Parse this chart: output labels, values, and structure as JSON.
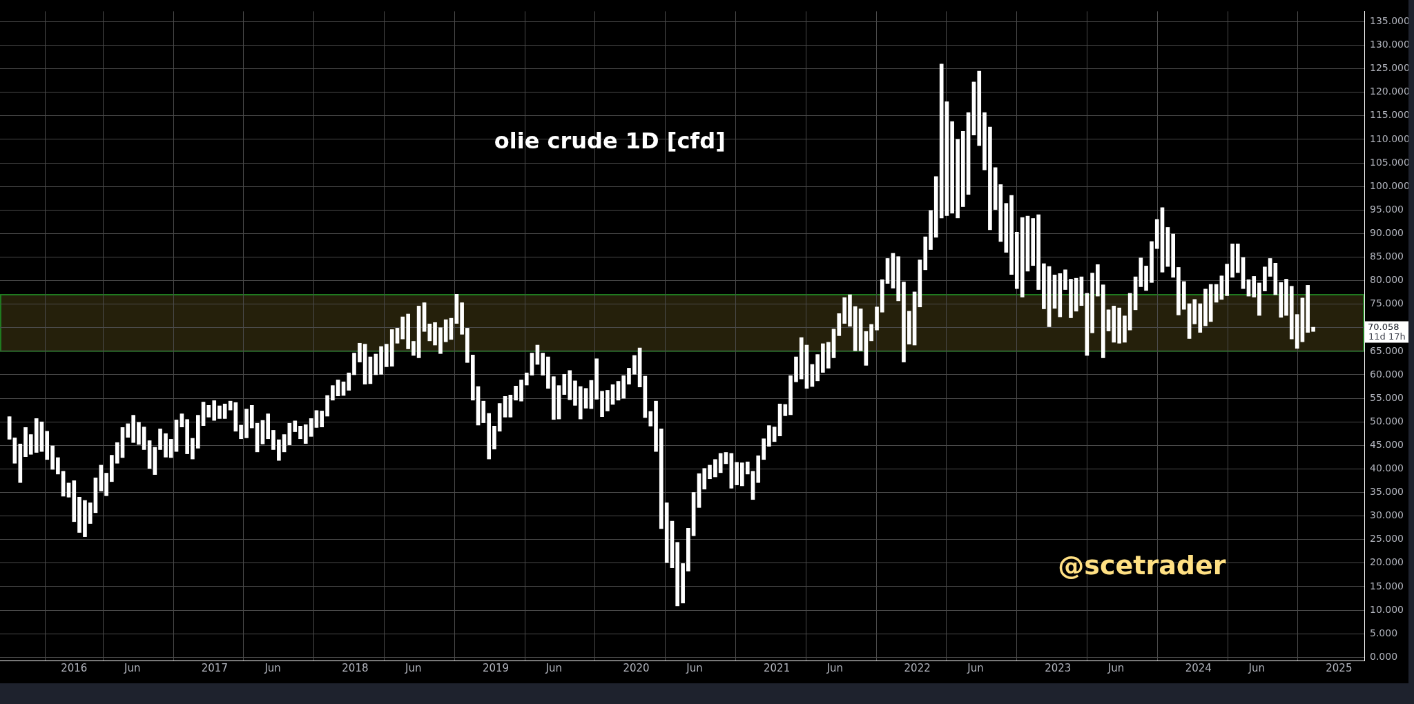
{
  "chart_data": {
    "type": "candlestick",
    "title": "olie crude 1D [cfd]",
    "color": "#ffffff",
    "grid": true,
    "x": [
      2015.54,
      2015.578,
      2015.617,
      2015.655,
      2015.693,
      2015.732,
      2015.77,
      2015.808,
      2015.847,
      2015.885,
      2015.923,
      2015.962,
      2016.0,
      2016.038,
      2016.077,
      2016.115,
      2016.153,
      2016.192,
      2016.23,
      2016.268,
      2016.307,
      2016.345,
      2016.383,
      2016.422,
      2016.46,
      2016.498,
      2016.537,
      2016.575,
      2016.613,
      2016.652,
      2016.69,
      2016.728,
      2016.767,
      2016.805,
      2016.843,
      2016.882,
      2016.92,
      2016.958,
      2016.997,
      2017.035,
      2017.073,
      2017.112,
      2017.15,
      2017.188,
      2017.227,
      2017.265,
      2017.303,
      2017.342,
      2017.38,
      2017.418,
      2017.457,
      2017.495,
      2017.533,
      2017.572,
      2017.61,
      2017.648,
      2017.687,
      2017.725,
      2017.763,
      2017.802,
      2017.84,
      2017.878,
      2017.917,
      2017.955,
      2017.993,
      2018.032,
      2018.07,
      2018.108,
      2018.147,
      2018.185,
      2018.223,
      2018.262,
      2018.3,
      2018.338,
      2018.377,
      2018.415,
      2018.453,
      2018.492,
      2018.53,
      2018.568,
      2018.607,
      2018.645,
      2018.683,
      2018.722,
      2018.76,
      2018.798,
      2018.837,
      2018.875,
      2018.913,
      2018.952,
      2018.99,
      2019.028,
      2019.067,
      2019.105,
      2019.143,
      2019.182,
      2019.22,
      2019.258,
      2019.297,
      2019.335,
      2019.373,
      2019.412,
      2019.45,
      2019.488,
      2019.527,
      2019.565,
      2019.603,
      2019.642,
      2019.68,
      2019.718,
      2019.757,
      2019.795,
      2019.833,
      2019.872,
      2019.91,
      2019.948,
      2019.987,
      2020.025,
      2020.063,
      2020.102,
      2020.14,
      2020.178,
      2020.217,
      2020.255,
      2020.293,
      2020.332,
      2020.37,
      2020.408,
      2020.447,
      2020.485,
      2020.523,
      2020.562,
      2020.6,
      2020.638,
      2020.677,
      2020.715,
      2020.753,
      2020.792,
      2020.83,
      2020.868,
      2020.907,
      2020.945,
      2020.983,
      2021.022,
      2021.06,
      2021.098,
      2021.137,
      2021.175,
      2021.213,
      2021.252,
      2021.29,
      2021.328,
      2021.367,
      2021.405,
      2021.443,
      2021.482,
      2021.52,
      2021.558,
      2021.597,
      2021.635,
      2021.673,
      2021.712,
      2021.75,
      2021.788,
      2021.827,
      2021.865,
      2021.903,
      2021.942,
      2021.98,
      2022.018,
      2022.057,
      2022.095,
      2022.133,
      2022.172,
      2022.21,
      2022.248,
      2022.287,
      2022.325,
      2022.363,
      2022.402,
      2022.44,
      2022.478,
      2022.517,
      2022.555,
      2022.593,
      2022.632,
      2022.67,
      2022.708,
      2022.747,
      2022.785,
      2022.823,
      2022.862,
      2022.9,
      2022.938,
      2022.977,
      2023.015,
      2023.053,
      2023.092,
      2023.13,
      2023.168,
      2023.207,
      2023.245,
      2023.283,
      2023.322,
      2023.36,
      2023.398,
      2023.437,
      2023.475,
      2023.513,
      2023.552,
      2023.59,
      2023.628,
      2023.667,
      2023.705,
      2023.743,
      2023.782,
      2023.82,
      2023.858,
      2023.897,
      2023.935,
      2023.973,
      2024.012,
      2024.05,
      2024.088,
      2024.127,
      2024.165,
      2024.203,
      2024.242,
      2024.28,
      2024.318,
      2024.357,
      2024.395,
      2024.433,
      2024.472,
      2024.51,
      2024.548,
      2024.587,
      2024.625,
      2024.663,
      2024.702,
      2024.74,
      2024.778,
      2024.817
    ],
    "ohlc": [
      [
        46.3,
        51.1,
        46.3,
        51.1
      ],
      [
        41.2,
        46.6,
        41.2,
        46.6
      ],
      [
        37.1,
        45.3,
        37.1,
        45.3
      ],
      [
        42.6,
        48.8,
        42.6,
        48.8
      ],
      [
        43.1,
        47.3,
        43.1,
        47.3
      ],
      [
        43.5,
        50.7,
        43.5,
        50.7
      ],
      [
        43.7,
        50,
        43.7,
        50
      ],
      [
        42,
        48,
        42,
        48
      ],
      [
        39.9,
        44.9,
        39.9,
        44.9
      ],
      [
        38.9,
        42.4,
        38.9,
        42.4
      ],
      [
        34.2,
        39.5,
        34.2,
        39.5
      ],
      [
        34,
        37,
        34,
        37
      ],
      [
        28.8,
        37.5,
        28.8,
        37.5
      ],
      [
        26.5,
        34,
        26.5,
        34
      ],
      [
        25.6,
        33.3,
        25.6,
        33.3
      ],
      [
        28.4,
        32.8,
        28.4,
        32.8
      ],
      [
        30.7,
        38.1,
        30.7,
        38.1
      ],
      [
        35.3,
        40.8,
        35.3,
        40.8
      ],
      [
        34.3,
        39.1,
        34.3,
        39.1
      ],
      [
        37.3,
        42.9,
        37.3,
        42.9
      ],
      [
        41.2,
        45.6,
        41.2,
        45.6
      ],
      [
        42.4,
        48.8,
        42.4,
        48.8
      ],
      [
        46.7,
        49.6,
        46.7,
        49.6
      ],
      [
        45.6,
        51.4,
        45.6,
        51.4
      ],
      [
        45.2,
        49.9,
        45.2,
        49.9
      ],
      [
        44.1,
        48.9,
        44.1,
        48.9
      ],
      [
        40.1,
        46,
        40.1,
        46
      ],
      [
        38.8,
        44.6,
        38.8,
        44.6
      ],
      [
        44.1,
        48.5,
        44.1,
        48.5
      ],
      [
        42.5,
        47.5,
        42.5,
        47.5
      ],
      [
        42.4,
        46.3,
        42.4,
        46.3
      ],
      [
        43.7,
        50.4,
        43.7,
        50.4
      ],
      [
        48.9,
        51.7,
        48.9,
        51.7
      ],
      [
        43.2,
        50.5,
        43.2,
        50.5
      ],
      [
        42.1,
        46.5,
        42.1,
        46.5
      ],
      [
        44.4,
        51.4,
        44.4,
        51.4
      ],
      [
        49.2,
        54.2,
        49.2,
        54.2
      ],
      [
        51,
        53.5,
        51,
        53.5
      ],
      [
        50.3,
        54.5,
        50.3,
        54.5
      ],
      [
        50.7,
        53.4,
        50.7,
        53.4
      ],
      [
        50.7,
        53.8,
        50.7,
        53.8
      ],
      [
        52.5,
        54.4,
        52.5,
        54.4
      ],
      [
        48,
        54.1,
        48,
        54.1
      ],
      [
        46.4,
        49.3,
        46.4,
        49.3
      ],
      [
        46.6,
        52.7,
        46.6,
        52.7
      ],
      [
        48.7,
        53.5,
        48.7,
        53.5
      ],
      [
        43.6,
        49.7,
        43.6,
        49.7
      ],
      [
        45.3,
        50.3,
        45.3,
        50.3
      ],
      [
        46.4,
        51.7,
        46.4,
        51.7
      ],
      [
        44.1,
        48.2,
        44.1,
        48.2
      ],
      [
        41.8,
        46.2,
        41.8,
        46.2
      ],
      [
        43.6,
        47.3,
        43.6,
        47.3
      ],
      [
        45.1,
        49.7,
        45.1,
        49.7
      ],
      [
        47.9,
        50.2,
        47.9,
        50.2
      ],
      [
        46.4,
        49.1,
        46.4,
        49.1
      ],
      [
        45.4,
        49.4,
        45.4,
        49.4
      ],
      [
        46.9,
        50.7,
        46.9,
        50.7
      ],
      [
        48.8,
        52.4,
        48.8,
        52.4
      ],
      [
        48.9,
        52.3,
        48.9,
        52.3
      ],
      [
        51.2,
        55.6,
        51.2,
        55.6
      ],
      [
        54.6,
        57.7,
        54.6,
        57.7
      ],
      [
        55.5,
        58.9,
        55.5,
        58.9
      ],
      [
        55.6,
        58.5,
        55.6,
        58.5
      ],
      [
        56.7,
        60.4,
        56.7,
        60.4
      ],
      [
        60,
        64.6,
        60,
        64.6
      ],
      [
        62.7,
        66.7,
        62.7,
        66.7
      ],
      [
        58,
        66.5,
        58,
        66.5
      ],
      [
        58.1,
        63.8,
        58.1,
        63.8
      ],
      [
        60,
        64.4,
        60,
        64.4
      ],
      [
        60.1,
        66,
        60.1,
        66
      ],
      [
        61.7,
        66.5,
        61.7,
        66.5
      ],
      [
        61.8,
        69.6,
        61.8,
        69.6
      ],
      [
        66.7,
        69.9,
        66.7,
        69.9
      ],
      [
        67.6,
        72.3,
        67.6,
        72.3
      ],
      [
        65.5,
        72.9,
        65.5,
        72.9
      ],
      [
        64.1,
        67.1,
        64.1,
        67.1
      ],
      [
        63.6,
        74.6,
        63.6,
        74.6
      ],
      [
        69.2,
        75.3,
        69.2,
        75.3
      ],
      [
        67.2,
        70.8,
        67.2,
        70.8
      ],
      [
        66.3,
        71.1,
        66.3,
        71.1
      ],
      [
        64.5,
        70,
        64.5,
        70
      ],
      [
        67,
        71.7,
        67,
        71.7
      ],
      [
        67.5,
        72,
        67.5,
        72
      ],
      [
        70.9,
        77.1,
        70.9,
        77.1
      ],
      [
        68.6,
        75.3,
        68.6,
        75.3
      ],
      [
        62.6,
        69.9,
        62.6,
        69.9
      ],
      [
        54.6,
        64.2,
        54.6,
        64.2
      ],
      [
        49.3,
        57.5,
        49.3,
        57.5
      ],
      [
        49.8,
        54.4,
        49.8,
        54.4
      ],
      [
        42.1,
        51.8,
        42.1,
        51.8
      ],
      [
        44.2,
        49.1,
        44.2,
        49.1
      ],
      [
        48,
        53.9,
        48,
        53.9
      ],
      [
        51,
        55.4,
        51,
        55.4
      ],
      [
        51,
        55.7,
        51,
        55.7
      ],
      [
        54.6,
        57.6,
        54.6,
        57.6
      ],
      [
        54.4,
        58.9,
        54.4,
        58.9
      ],
      [
        57.8,
        60.4,
        57.8,
        60.4
      ],
      [
        59.9,
        64.6,
        59.9,
        64.6
      ],
      [
        62.2,
        66.3,
        62.2,
        66.3
      ],
      [
        59.9,
        64.6,
        59.9,
        64.6
      ],
      [
        57.1,
        63.8,
        57.1,
        63.8
      ],
      [
        50.5,
        59.6,
        50.5,
        59.6
      ],
      [
        50.6,
        57.7,
        50.6,
        57.7
      ],
      [
        55.8,
        60.1,
        55.8,
        60.1
      ],
      [
        54.7,
        60.9,
        54.7,
        60.9
      ],
      [
        53.5,
        58.7,
        53.5,
        58.7
      ],
      [
        50.6,
        57.5,
        50.6,
        57.5
      ],
      [
        52.9,
        57.1,
        52.9,
        57.1
      ],
      [
        52.8,
        58.8,
        52.8,
        58.8
      ],
      [
        54.8,
        63.4,
        54.8,
        63.4
      ],
      [
        51.1,
        56.5,
        51.1,
        56.5
      ],
      [
        52.3,
        56.7,
        52.3,
        56.7
      ],
      [
        53.7,
        57.9,
        53.7,
        57.9
      ],
      [
        54.6,
        58.6,
        54.6,
        58.6
      ],
      [
        55,
        59.8,
        55,
        59.8
      ],
      [
        58,
        61.4,
        58,
        61.4
      ],
      [
        60.1,
        64.1,
        60.1,
        64.1
      ],
      [
        57.4,
        65.7,
        57.4,
        65.7
      ],
      [
        50.9,
        59.7,
        50.9,
        59.7
      ],
      [
        49.1,
        52.2,
        49.1,
        52.2
      ],
      [
        43.7,
        54.4,
        43.7,
        54.4
      ],
      [
        27.3,
        48.5,
        27.3,
        48.5
      ],
      [
        20.1,
        32.8,
        20.1,
        32.8
      ],
      [
        19,
        28.9,
        19,
        28.9
      ],
      [
        10.9,
        24.4,
        10.9,
        24.4
      ],
      [
        11.5,
        19.9,
        11.5,
        19.9
      ],
      [
        18.3,
        27.4,
        18.3,
        27.4
      ],
      [
        25.8,
        35,
        25.8,
        35
      ],
      [
        31.8,
        39,
        31.8,
        39
      ],
      [
        35.7,
        40.1,
        35.7,
        40.1
      ],
      [
        37.9,
        40.8,
        37.9,
        40.8
      ],
      [
        38.3,
        42,
        38.3,
        42
      ],
      [
        39.2,
        43.3,
        39.2,
        43.3
      ],
      [
        41.1,
        43.5,
        41.1,
        43.5
      ],
      [
        35.9,
        43.3,
        35.9,
        43.3
      ],
      [
        36.6,
        41.4,
        36.6,
        41.4
      ],
      [
        36.4,
        41.3,
        36.4,
        41.3
      ],
      [
        38.9,
        41.5,
        38.9,
        41.5
      ],
      [
        33.5,
        39.5,
        33.5,
        39.5
      ],
      [
        37.1,
        42.8,
        37.1,
        42.8
      ],
      [
        42,
        46.4,
        42,
        46.4
      ],
      [
        44.8,
        49.2,
        44.8,
        49.2
      ],
      [
        45.8,
        48.9,
        45.8,
        48.9
      ],
      [
        47,
        53.8,
        47,
        53.8
      ],
      [
        51.3,
        53.7,
        51.3,
        53.7
      ],
      [
        51.5,
        59.8,
        51.5,
        59.8
      ],
      [
        58.5,
        63.8,
        58.5,
        63.8
      ],
      [
        59.1,
        67.9,
        59.1,
        67.9
      ],
      [
        57.1,
        66.3,
        57.1,
        66.3
      ],
      [
        57.5,
        62.2,
        57.5,
        62.2
      ],
      [
        58.7,
        64.3,
        58.7,
        64.3
      ],
      [
        60.5,
        66.6,
        60.5,
        66.6
      ],
      [
        61.4,
        66.9,
        61.4,
        66.9
      ],
      [
        63.6,
        69.7,
        63.6,
        69.7
      ],
      [
        68.3,
        73,
        68.3,
        73
      ],
      [
        70.9,
        76.4,
        70.9,
        76.4
      ],
      [
        70.3,
        77,
        70.3,
        77
      ],
      [
        65.1,
        74.5,
        65.1,
        74.5
      ],
      [
        65.1,
        74,
        65.1,
        74
      ],
      [
        62,
        69.2,
        62,
        69.2
      ],
      [
        67.2,
        70.7,
        67.2,
        70.7
      ],
      [
        69.5,
        74.4,
        69.5,
        74.4
      ],
      [
        73.3,
        80.2,
        73.3,
        80.2
      ],
      [
        79.4,
        84.7,
        79.4,
        84.7
      ],
      [
        78.4,
        85.8,
        78.4,
        85.8
      ],
      [
        75.7,
        85.1,
        75.7,
        85.1
      ],
      [
        62.7,
        79.7,
        62.7,
        79.7
      ],
      [
        66.5,
        73.5,
        66.5,
        73.5
      ],
      [
        66.3,
        77.6,
        66.3,
        77.6
      ],
      [
        74.4,
        84.4,
        74.4,
        84.4
      ],
      [
        82.3,
        89.3,
        82.3,
        89.3
      ],
      [
        86.6,
        94.9,
        86.6,
        94.9
      ],
      [
        89.2,
        102.1,
        89.2,
        102.1
      ],
      [
        93.3,
        126,
        93.3,
        126
      ],
      [
        93.8,
        118,
        93.8,
        118
      ],
      [
        94.3,
        113.8,
        94.3,
        113.8
      ],
      [
        93.3,
        110,
        93.3,
        110
      ],
      [
        95.7,
        111.7,
        95.7,
        111.7
      ],
      [
        98.3,
        115.7,
        98.3,
        115.7
      ],
      [
        110.9,
        122.2,
        110.9,
        122.2
      ],
      [
        108.7,
        124.5,
        108.7,
        124.5
      ],
      [
        103.5,
        115.7,
        103.5,
        115.7
      ],
      [
        90.8,
        112.6,
        90.8,
        112.6
      ],
      [
        95.1,
        104,
        95.1,
        104
      ],
      [
        88.3,
        100.4,
        88.3,
        100.4
      ],
      [
        86,
        96.4,
        86,
        96.4
      ],
      [
        81.3,
        98.1,
        81.3,
        98.1
      ],
      [
        78.3,
        90.3,
        78.3,
        90.3
      ],
      [
        76.5,
        93.4,
        76.5,
        93.4
      ],
      [
        82,
        93.7,
        82,
        93.7
      ],
      [
        83.2,
        93.2,
        83.2,
        93.2
      ],
      [
        78.1,
        94,
        78.1,
        94
      ],
      [
        74,
        83.6,
        74,
        83.6
      ],
      [
        70.2,
        83,
        70.2,
        83
      ],
      [
        74.1,
        81.2,
        74.1,
        81.2
      ],
      [
        72.3,
        81.5,
        72.3,
        81.5
      ],
      [
        78.1,
        82.3,
        78.1,
        82.3
      ],
      [
        72.1,
        80.3,
        72.1,
        80.3
      ],
      [
        73.5,
        80.5,
        73.5,
        80.5
      ],
      [
        74.7,
        80.8,
        74.7,
        80.8
      ],
      [
        64.1,
        77.3,
        64.1,
        77.3
      ],
      [
        68.9,
        81.6,
        68.9,
        81.6
      ],
      [
        76.7,
        83.4,
        76.7,
        83.4
      ],
      [
        63.6,
        79.1,
        63.6,
        79.1
      ],
      [
        69.3,
        73.8,
        69.3,
        73.8
      ],
      [
        66.9,
        74.6,
        66.9,
        74.6
      ],
      [
        66.7,
        74.2,
        66.7,
        74.2
      ],
      [
        66.9,
        72.5,
        66.9,
        72.5
      ],
      [
        69.5,
        77.3,
        69.5,
        77.3
      ],
      [
        73.8,
        80.8,
        73.8,
        80.8
      ],
      [
        78.7,
        84.8,
        78.7,
        84.8
      ],
      [
        77.9,
        83.1,
        77.9,
        83.1
      ],
      [
        79.6,
        88.3,
        79.6,
        88.3
      ],
      [
        86.8,
        93,
        86.8,
        93
      ],
      [
        81.8,
        95.5,
        81.8,
        95.5
      ],
      [
        83,
        91.3,
        83,
        91.3
      ],
      [
        80.7,
        89.9,
        80.7,
        89.9
      ],
      [
        72.7,
        82.8,
        72.7,
        82.8
      ],
      [
        73.9,
        79.8,
        73.9,
        79.8
      ],
      [
        67.7,
        75.1,
        67.7,
        75.1
      ],
      [
        70.8,
        76,
        70.8,
        76
      ],
      [
        69,
        75.1,
        69,
        75.1
      ],
      [
        70.4,
        78.2,
        70.4,
        78.2
      ],
      [
        71.3,
        79.2,
        71.3,
        79.2
      ],
      [
        75.4,
        79.2,
        75.4,
        79.2
      ],
      [
        76,
        81,
        76,
        81
      ],
      [
        76.8,
        83.5,
        76.8,
        83.5
      ],
      [
        80.7,
        87.8,
        80.7,
        87.8
      ],
      [
        81.7,
        87.8,
        81.7,
        87.8
      ],
      [
        78.3,
        84.9,
        78.3,
        84.9
      ],
      [
        76.7,
        80.2,
        76.7,
        80.2
      ],
      [
        76.5,
        80.9,
        76.5,
        80.9
      ],
      [
        72.6,
        79.5,
        72.6,
        79.5
      ],
      [
        77.8,
        82.9,
        77.8,
        82.9
      ],
      [
        80.9,
        84.7,
        80.9,
        84.7
      ],
      [
        77,
        83.7,
        77,
        83.7
      ],
      [
        72.2,
        79.6,
        72.2,
        79.6
      ],
      [
        72.6,
        80.3,
        72.6,
        80.3
      ],
      [
        67.6,
        78.8,
        67.6,
        78.8
      ],
      [
        65.6,
        72.8,
        65.6,
        72.8
      ],
      [
        67,
        76.3,
        67,
        76.3
      ],
      [
        69,
        79,
        69,
        79
      ],
      [
        69.2,
        70.1,
        69.2,
        70.1
      ]
    ],
    "xlim": [
      2015.473,
      2025.18
    ],
    "xticks": [
      {
        "value": 2016,
        "label": "2016"
      },
      {
        "value": 2016.415,
        "label": "Jun"
      },
      {
        "value": 2017,
        "label": "2017"
      },
      {
        "value": 2017.414,
        "label": "Jun"
      },
      {
        "value": 2018,
        "label": "2018"
      },
      {
        "value": 2018.414,
        "label": "Jun"
      },
      {
        "value": 2019,
        "label": "2019"
      },
      {
        "value": 2019.414,
        "label": "Jun"
      },
      {
        "value": 2020,
        "label": "2020"
      },
      {
        "value": 2020.415,
        "label": "Jun"
      },
      {
        "value": 2021,
        "label": "2021"
      },
      {
        "value": 2021.414,
        "label": "Jun"
      },
      {
        "value": 2022,
        "label": "2022"
      },
      {
        "value": 2022.414,
        "label": "Jun"
      },
      {
        "value": 2023,
        "label": "2023"
      },
      {
        "value": 2023.414,
        "label": "Jun"
      },
      {
        "value": 2024,
        "label": "2024"
      },
      {
        "value": 2024.415,
        "label": "Jun"
      },
      {
        "value": 2025,
        "label": "2025"
      }
    ],
    "ylim": [
      -0.7,
      137.2
    ],
    "yticks": [
      {
        "value": 0,
        "label": "0.000"
      },
      {
        "value": 5,
        "label": "5.000"
      },
      {
        "value": 10,
        "label": "10.000"
      },
      {
        "value": 15,
        "label": "15.000"
      },
      {
        "value": 20,
        "label": "20.000"
      },
      {
        "value": 25,
        "label": "25.000"
      },
      {
        "value": 30,
        "label": "30.000"
      },
      {
        "value": 35,
        "label": "35.000"
      },
      {
        "value": 40,
        "label": "40.000"
      },
      {
        "value": 45,
        "label": "45.000"
      },
      {
        "value": 50,
        "label": "50.000"
      },
      {
        "value": 55,
        "label": "55.000"
      },
      {
        "value": 60,
        "label": "60.000"
      },
      {
        "value": 65,
        "label": "65.000"
      },
      {
        "value": 70,
        "label": null
      },
      {
        "value": 75,
        "label": "75.000"
      },
      {
        "value": 80,
        "label": "80.000"
      },
      {
        "value": 85,
        "label": "85.000"
      },
      {
        "value": 90,
        "label": "90.000"
      },
      {
        "value": 95,
        "label": "95.000"
      },
      {
        "value": 100,
        "label": "100.000"
      },
      {
        "value": 105,
        "label": "105.000"
      },
      {
        "value": 110,
        "label": "110.000"
      },
      {
        "value": 115,
        "label": "115.000"
      },
      {
        "value": 120,
        "label": "120.000"
      },
      {
        "value": 125,
        "label": "125.000"
      },
      {
        "value": 130,
        "label": "130.000"
      },
      {
        "value": 135,
        "label": "135.000"
      }
    ],
    "bands": [
      {
        "axis": "y",
        "from": 65,
        "to": 77,
        "color": "#25200b"
      }
    ],
    "annotations": [
      "@scetrader",
      "70.058",
      "11d 17h"
    ]
  }
}
